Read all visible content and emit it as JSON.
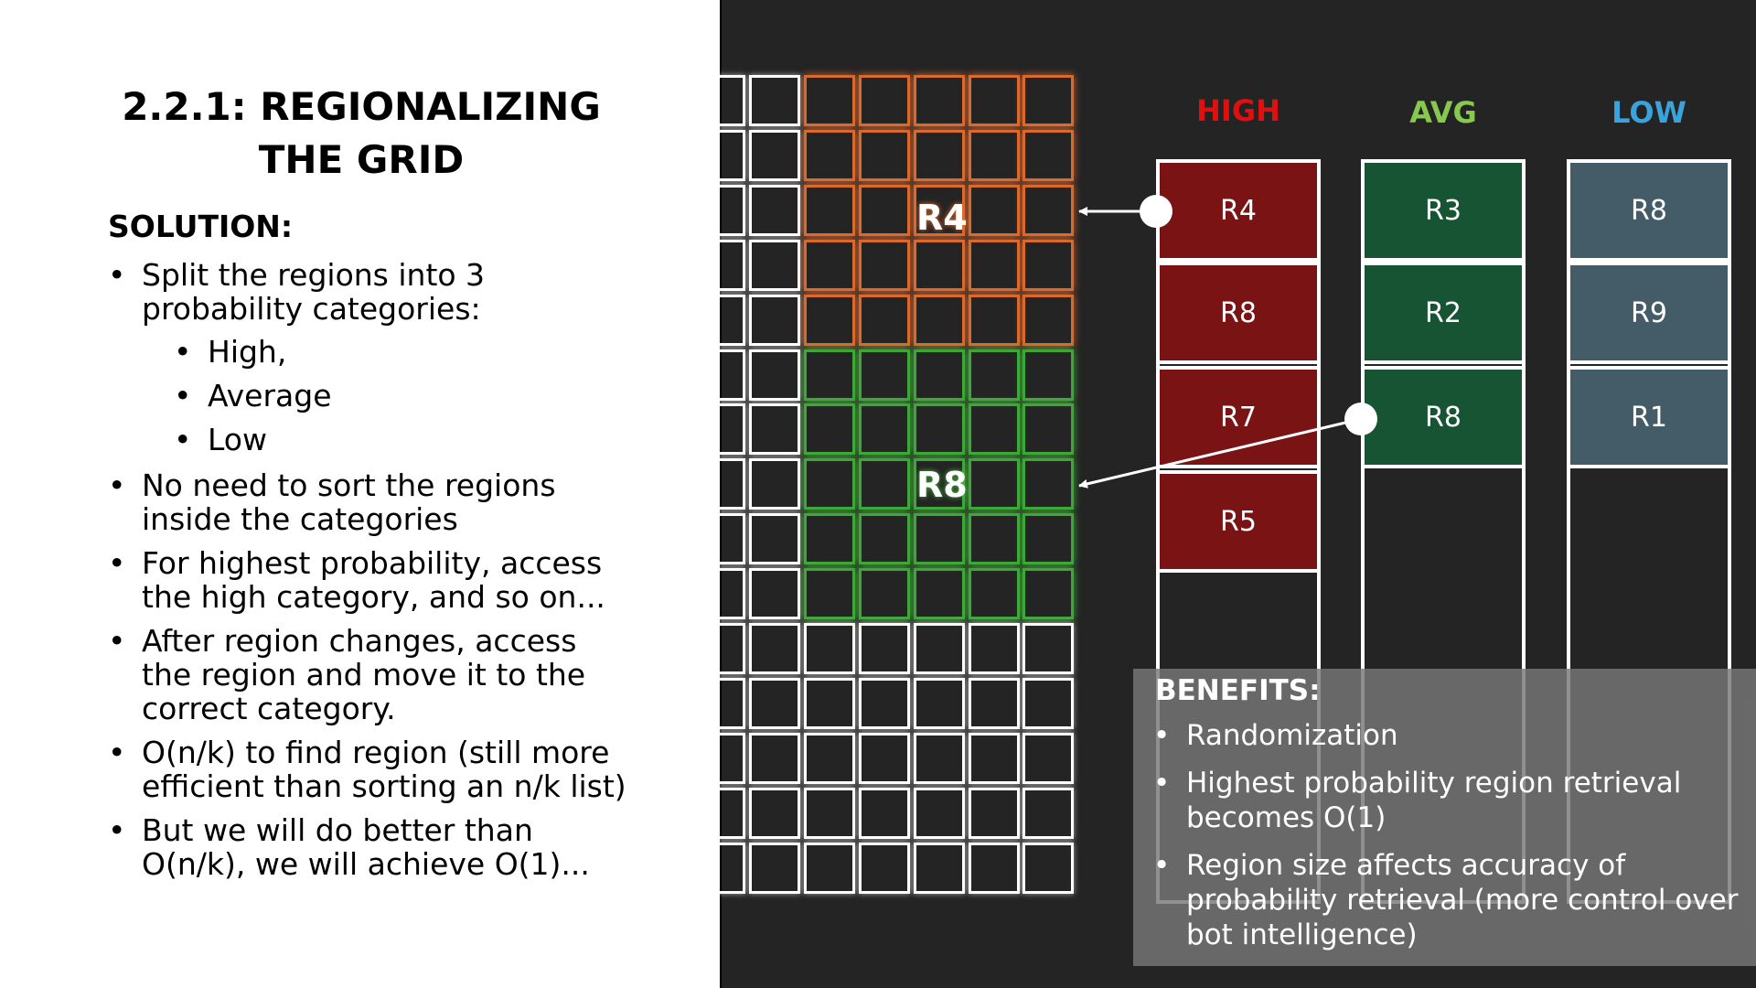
{
  "slide": {
    "title_lines": [
      "2.2.1: REGIONALIZING",
      "THE GRID"
    ],
    "solution_heading": "SOLUTION:",
    "bullet_glyph": "•",
    "bullets": {
      "split": [
        "Split the regions into 3",
        "probability categories:"
      ],
      "high": "High,",
      "average": "Average",
      "low": "Low",
      "no_sort": [
        "No need to sort the regions",
        "inside the categories"
      ],
      "highest": [
        "For highest probability, access",
        "the high category, and so on..."
      ],
      "after_change": [
        "After region changes, access",
        "the region and move it to the",
        "correct category."
      ],
      "find": [
        "O(n/k) to find region (still more",
        "efficient than sorting an n/k list)"
      ],
      "better": [
        "But we will do better than",
        "O(n/k), we will achieve O(1)..."
      ]
    }
  },
  "grid": {
    "region_r4_label": "R4",
    "region_r8_label": "R8",
    "colors": {
      "grid": "#ffffff",
      "region_r4": "#d96a2e",
      "region_r8": "#3ea63a"
    }
  },
  "categories": {
    "high": {
      "header": "HIGH",
      "color": "#e01010",
      "fill": "#7a1414",
      "slots": [
        "R4",
        "R8",
        "R7",
        "R5"
      ]
    },
    "avg": {
      "header": "AVG",
      "color": "#86c94e",
      "fill": "#175433",
      "slots": [
        "R3",
        "R2",
        "R8"
      ]
    },
    "low": {
      "header": "LOW",
      "color": "#3aa3dc",
      "fill": "#445c68",
      "slots": [
        "R8",
        "R9",
        "R1"
      ]
    }
  },
  "benefits": {
    "heading": "BENEFITS:",
    "item1": [
      "Randomization"
    ],
    "item2": [
      "Highest probability region retrieval",
      "becomes O(1)"
    ],
    "item3": [
      "Region size affects accuracy of",
      "probability retrieval (more control over",
      "bot intelligence)"
    ]
  }
}
